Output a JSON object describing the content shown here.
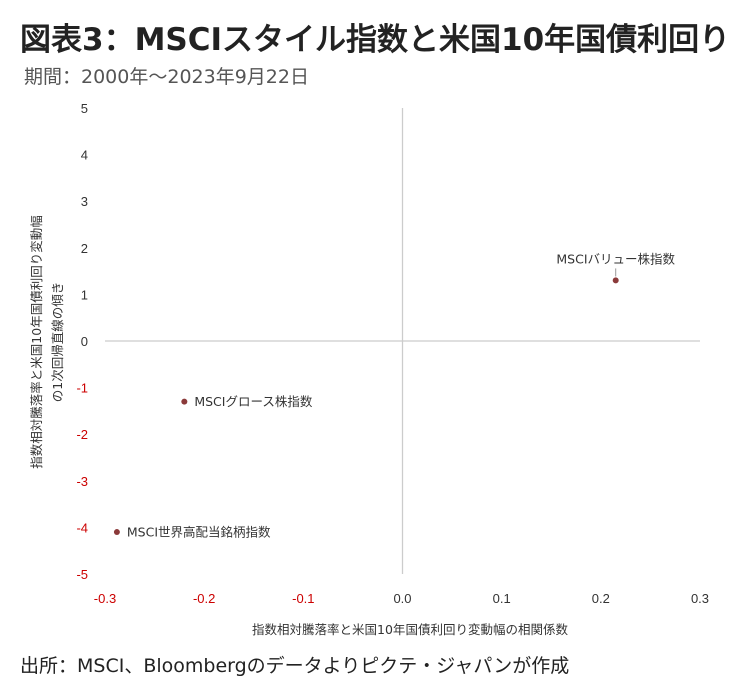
{
  "title": "図表3：MSCIスタイル指数と米国10年国債利回り",
  "period": "期間：2000年～2023年9月22日",
  "source": "出所：MSCI、Bloombergのデータよりピクテ・ジャパンが作成",
  "chart_data": {
    "type": "scatter",
    "xlabel": "指数相対騰落率と米国10年国債利回り変動幅の相関係数",
    "ylabel_lines": [
      "指数相対騰落率と米国10年国債利回り変動幅",
      "の1次回帰直線の傾き"
    ],
    "xlim": [
      -0.3,
      0.3
    ],
    "ylim": [
      -5,
      5
    ],
    "xticks": [
      {
        "value": -0.3,
        "label": "-0.3"
      },
      {
        "value": -0.2,
        "label": "-0.2"
      },
      {
        "value": -0.1,
        "label": "-0.1"
      },
      {
        "value": 0,
        "label": "0.0"
      },
      {
        "value": 0.1,
        "label": "0.1"
      },
      {
        "value": 0.2,
        "label": "0.2"
      },
      {
        "value": 0.3,
        "label": "0.3"
      }
    ],
    "yticks": [
      {
        "value": 5,
        "label": "5"
      },
      {
        "value": 4,
        "label": "4"
      },
      {
        "value": 3,
        "label": "3"
      },
      {
        "value": 2,
        "label": "2"
      },
      {
        "value": 1,
        "label": "1"
      },
      {
        "value": 0,
        "label": "0"
      },
      {
        "value": -1,
        "label": "-1"
      },
      {
        "value": -2,
        "label": "-2"
      },
      {
        "value": -3,
        "label": "-3"
      },
      {
        "value": -4,
        "label": "-4"
      },
      {
        "value": -5,
        "label": "-5"
      }
    ],
    "points": [
      {
        "label": "MSCIバリュー株指数",
        "x": 0.215,
        "y": 1.3,
        "label_position": "above"
      },
      {
        "label": "MSCIグロース株指数",
        "x": -0.22,
        "y": -1.3,
        "label_position": "right"
      },
      {
        "label": "MSCI世界高配当銘柄指数",
        "x": -0.288,
        "y": -4.1,
        "label_position": "right"
      }
    ],
    "colors": {
      "marker": "#8b3a3a",
      "negative_tick": "#cc0000",
      "tick": "#333333",
      "axis_line": "#cccccc"
    }
  }
}
